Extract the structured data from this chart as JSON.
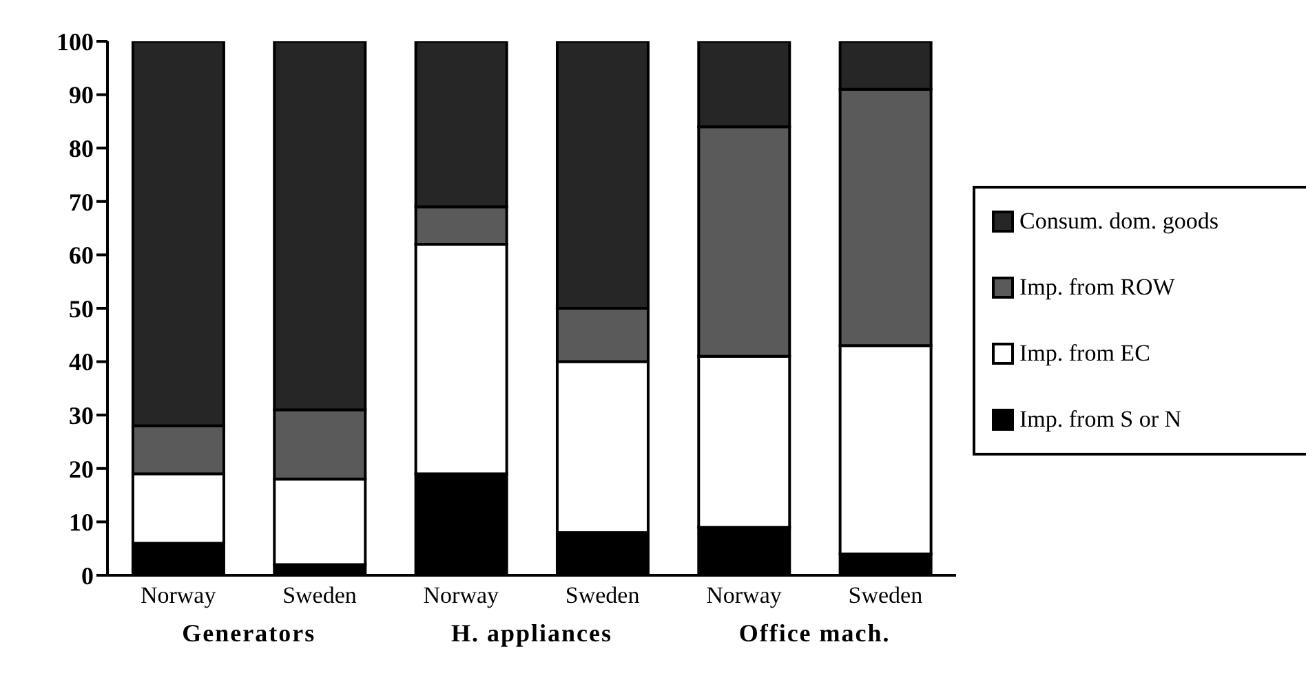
{
  "chart_data": {
    "type": "bar",
    "stacked": true,
    "categories": [
      "Norway",
      "Sweden",
      "Norway",
      "Sweden",
      "Norway",
      "Sweden"
    ],
    "series": [
      {
        "name": "Imp. from S or N",
        "color": "#000000",
        "values": [
          6,
          2,
          19,
          8,
          9,
          4
        ]
      },
      {
        "name": "Imp. from EC",
        "color": "#ffffff",
        "values": [
          13,
          16,
          43,
          32,
          32,
          39
        ]
      },
      {
        "name": "Imp. from ROW",
        "color": "#5a5a5a",
        "values": [
          9,
          13,
          7,
          10,
          43,
          48
        ]
      },
      {
        "name": "Consum. dom. goods",
        "color": "#262626",
        "values": [
          72,
          69,
          31,
          50,
          16,
          9
        ]
      }
    ],
    "ylim": [
      0,
      100
    ],
    "yticks": [
      0,
      10,
      20,
      30,
      40,
      50,
      60,
      70,
      80,
      90,
      100
    ],
    "annotations": [
      "Generators",
      "H. appliances",
      "Office mach."
    ],
    "legend": "right",
    "grid": false
  }
}
